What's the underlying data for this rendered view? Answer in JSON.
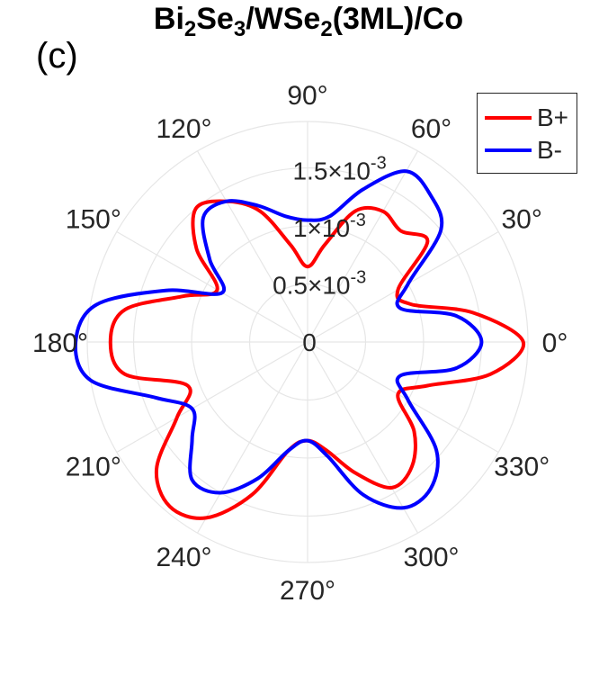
{
  "figure": {
    "title_parts": [
      "Bi",
      "2",
      "Se",
      "3",
      "/WSe",
      "2",
      "(3ML)/Co"
    ],
    "panel_label": "(c)"
  },
  "chart_data": {
    "type": "polar-line",
    "theta_unit": "degree",
    "r_max": 0.0019,
    "radial_ticks": [
      {
        "value": 0,
        "label": "0"
      },
      {
        "value": 0.0005,
        "label": "0.5×10-3"
      },
      {
        "value": 0.001,
        "label": "1×10-3"
      },
      {
        "value": 0.0015,
        "label": "1.5×10-3"
      }
    ],
    "angle_ticks": [
      "0°",
      "30°",
      "60°",
      "90°",
      "120°",
      "150°",
      "180°",
      "210°",
      "240°",
      "270°",
      "300°",
      "330°"
    ],
    "series": [
      {
        "name": "B+",
        "color": "#ff0000",
        "theta_deg": [
          0,
          10,
          20,
          30,
          40,
          50,
          60,
          70,
          80,
          90,
          100,
          110,
          120,
          130,
          140,
          150,
          160,
          170,
          180,
          190,
          200,
          210,
          220,
          230,
          240,
          250,
          260,
          270,
          280,
          290,
          300,
          310,
          320,
          330,
          340,
          350,
          360
        ],
        "r": [
          0.00186,
          0.00145,
          0.00095,
          0.0009,
          0.00135,
          0.00125,
          0.0013,
          0.0012,
          0.00085,
          0.00065,
          0.00085,
          0.0012,
          0.0014,
          0.0015,
          0.00125,
          0.0009,
          0.00115,
          0.0016,
          0.0017,
          0.0016,
          0.0011,
          0.0013,
          0.0017,
          0.00185,
          0.00175,
          0.0014,
          0.00095,
          0.00085,
          0.00095,
          0.0012,
          0.00145,
          0.0014,
          0.0012,
          0.0009,
          0.0011,
          0.0016,
          0.00186
        ]
      },
      {
        "name": "B-",
        "color": "#0000ff",
        "theta_deg": [
          0,
          10,
          20,
          30,
          40,
          50,
          60,
          70,
          80,
          90,
          100,
          110,
          120,
          130,
          140,
          150,
          160,
          170,
          180,
          190,
          200,
          210,
          220,
          230,
          240,
          250,
          260,
          270,
          280,
          290,
          300,
          310,
          320,
          330,
          340,
          350,
          360
        ],
        "r": [
          0.0015,
          0.0013,
          0.00085,
          0.001,
          0.0015,
          0.00165,
          0.0017,
          0.0014,
          0.0011,
          0.00105,
          0.0011,
          0.00125,
          0.0014,
          0.0014,
          0.0011,
          0.00085,
          0.0013,
          0.00185,
          0.002,
          0.0019,
          0.0014,
          0.00115,
          0.0013,
          0.00155,
          0.0015,
          0.00125,
          0.00095,
          0.00085,
          0.001,
          0.0014,
          0.00165,
          0.00165,
          0.00145,
          0.001,
          0.00085,
          0.0013,
          0.0015
        ]
      }
    ],
    "legend_position": "top-right"
  }
}
